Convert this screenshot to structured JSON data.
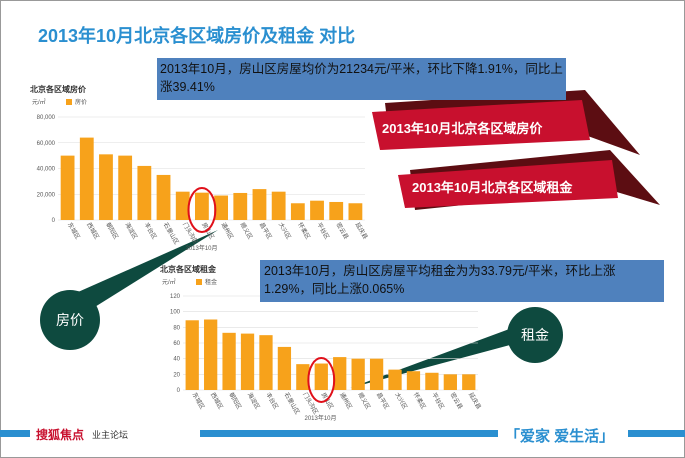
{
  "slide": {
    "title": "2013年10月北京各区域房价及租金  对比",
    "note_price": "2013年10月，房山区房屋均价为21234元/平米，环比下降1.91%，同比上涨39.41%",
    "note_rent": "2013年10月，房山区房屋平均租金为为33.79元/平米，环比上涨1.29%，同比上涨0.065%",
    "ribbon_price": "2013年10月北京各区域房价",
    "ribbon_rent": "2013年10月北京各区域租金",
    "bubble_price": "房价",
    "bubble_rent": "租金",
    "logo_sohu": "搜狐焦点",
    "logo_forum": "业主论坛",
    "slogan": "「爱家 爱生活」"
  },
  "chart_data": [
    {
      "type": "bar",
      "title": "北京各区域房价",
      "y_unit": "元/㎡",
      "x_label": "2013年10月",
      "categories": [
        "东城区",
        "西城区",
        "朝阳区",
        "海淀区",
        "丰台区",
        "石景山区",
        "门头沟区",
        "房山区",
        "通州区",
        "顺义区",
        "昌平区",
        "大兴区",
        "怀柔区",
        "平谷区",
        "密云县",
        "延庆县"
      ],
      "series": [
        {
          "name": "房价",
          "color": "#f7a21b",
          "values": [
            50000,
            64000,
            51000,
            50000,
            42000,
            35000,
            22000,
            21234,
            19000,
            21000,
            24000,
            22000,
            13000,
            15000,
            14000,
            13000
          ]
        }
      ],
      "ylim": [
        0,
        80000
      ],
      "yticks": [
        0,
        {
          "value": 20000,
          "label": "20,000"
        },
        {
          "value": 40000,
          "label": "40,000"
        },
        {
          "value": 60000,
          "label": "60,000"
        },
        {
          "value": 80000,
          "label": "80,000"
        }
      ],
      "grid": true
    },
    {
      "type": "bar",
      "title": "北京各区域租金",
      "y_unit": "元/㎡",
      "x_label": "2013年10月",
      "categories": [
        "东城区",
        "西城区",
        "朝阳区",
        "海淀区",
        "丰台区",
        "石景山区",
        "门头沟区",
        "房山区",
        "通州区",
        "顺义区",
        "昌平区",
        "大兴区",
        "怀柔区",
        "平谷区",
        "密云县",
        "延庆县"
      ],
      "series": [
        {
          "name": "租金",
          "color": "#f7a21b",
          "values": [
            89,
            90,
            73,
            72,
            70,
            55,
            33,
            33.79,
            42,
            40,
            40,
            26,
            24,
            22,
            20,
            20
          ]
        }
      ],
      "ylim": [
        0,
        120
      ],
      "yticks": [
        0,
        20,
        40,
        60,
        80,
        100,
        120
      ],
      "grid": true
    }
  ]
}
